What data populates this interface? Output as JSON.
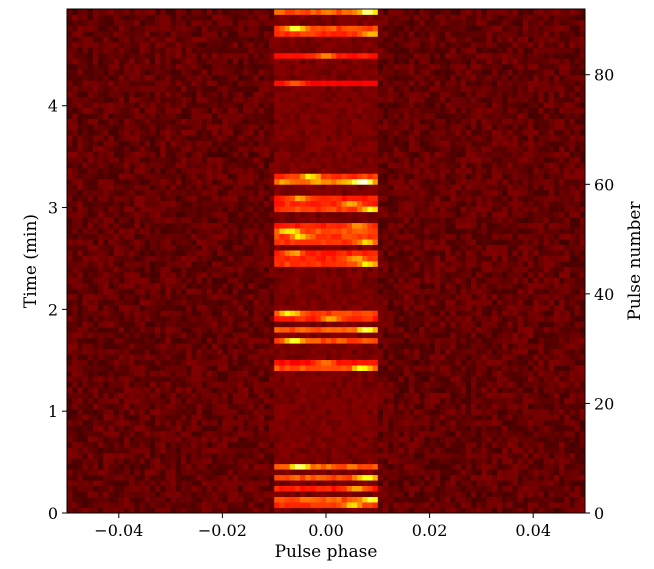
{
  "chart_data": {
    "type": "heatmap",
    "title": "",
    "xlabel": "Pulse phase",
    "ylabel": "Time (min)",
    "y2label": "Pulse number",
    "xlim": [
      -0.05,
      0.05
    ],
    "ylim": [
      0,
      4.95
    ],
    "y2lim": [
      0,
      92
    ],
    "x_ticks": [
      -0.04,
      -0.02,
      0.0,
      0.02,
      0.04
    ],
    "x_tick_labels": [
      "−0.04",
      "−0.02",
      "0.00",
      "0.02",
      "0.04"
    ],
    "y_ticks": [
      0,
      1,
      2,
      3,
      4
    ],
    "y_tick_labels": [
      "0",
      "1",
      "2",
      "3",
      "4"
    ],
    "y2_ticks": [
      0,
      20,
      40,
      60,
      80
    ],
    "y2_tick_labels": [
      "0",
      "20",
      "40",
      "60",
      "80"
    ],
    "colormap": "hot",
    "n_phase_bins": 100,
    "n_pulses": 92,
    "on_pulse_window": [
      -0.01,
      0.01
    ],
    "bright_pulses": [
      {
        "pulse": 1,
        "intensity": 0.55,
        "peak_phase": 0.005
      },
      {
        "pulse": 2,
        "intensity": 0.75,
        "peak_phase": 0.009
      },
      {
        "pulse": 4,
        "intensity": 0.45,
        "peak_phase": 0.006
      },
      {
        "pulse": 6,
        "intensity": 0.75,
        "peak_phase": 0.008
      },
      {
        "pulse": 8,
        "intensity": 0.8,
        "peak_phase": -0.005
      },
      {
        "pulse": 26,
        "intensity": 0.7,
        "peak_phase": 0.007
      },
      {
        "pulse": 27,
        "intensity": 0.35,
        "peak_phase": 0.0
      },
      {
        "pulse": 31,
        "intensity": 0.7,
        "peak_phase": -0.006
      },
      {
        "pulse": 33,
        "intensity": 0.75,
        "peak_phase": 0.008
      },
      {
        "pulse": 35,
        "intensity": 0.5,
        "peak_phase": 0.001
      },
      {
        "pulse": 36,
        "intensity": 0.65,
        "peak_phase": -0.007
      },
      {
        "pulse": 45,
        "intensity": 0.6,
        "peak_phase": 0.008
      },
      {
        "pulse": 46,
        "intensity": 0.5,
        "peak_phase": 0.006
      },
      {
        "pulse": 47,
        "intensity": 0.45,
        "peak_phase": -0.006
      },
      {
        "pulse": 49,
        "intensity": 0.55,
        "peak_phase": 0.008
      },
      {
        "pulse": 50,
        "intensity": 0.6,
        "peak_phase": -0.005
      },
      {
        "pulse": 51,
        "intensity": 0.7,
        "peak_phase": -0.007
      },
      {
        "pulse": 52,
        "intensity": 0.45,
        "peak_phase": 0.006
      },
      {
        "pulse": 55,
        "intensity": 0.65,
        "peak_phase": 0.009
      },
      {
        "pulse": 56,
        "intensity": 0.5,
        "peak_phase": 0.005
      },
      {
        "pulse": 57,
        "intensity": 0.45,
        "peak_phase": -0.005
      },
      {
        "pulse": 60,
        "intensity": 1.0,
        "peak_phase": 0.007
      },
      {
        "pulse": 61,
        "intensity": 0.6,
        "peak_phase": -0.003
      },
      {
        "pulse": 78,
        "intensity": 0.3,
        "peak_phase": -0.006
      },
      {
        "pulse": 83,
        "intensity": 0.4,
        "peak_phase": 0.0
      },
      {
        "pulse": 87,
        "intensity": 0.55,
        "peak_phase": 0.009
      },
      {
        "pulse": 88,
        "intensity": 0.7,
        "peak_phase": -0.006
      },
      {
        "pulse": 91,
        "intensity": 0.8,
        "peak_phase": 0.008
      }
    ],
    "noise_level": 0.1
  }
}
